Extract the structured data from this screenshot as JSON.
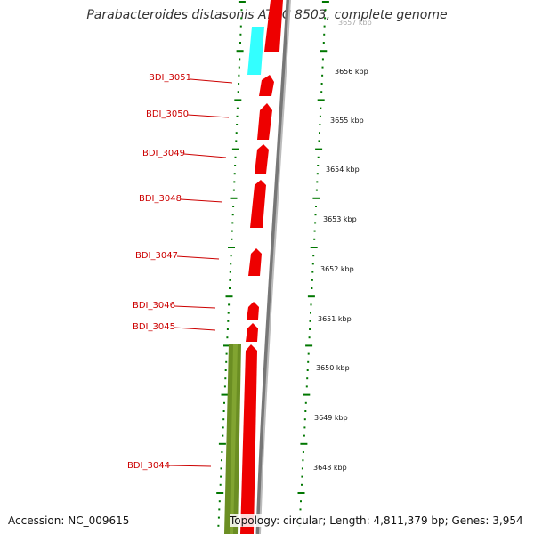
{
  "title": "Parabacteroides distasonis ATCC 8503, complete genome",
  "footer": {
    "accession": "Accession: NC_009615",
    "topology": "Topology: circular; Length: 4,811,379 bp; Genes: 3,954"
  },
  "colors": {
    "gene": "#ee0000",
    "cyan_feature": "#33ffff",
    "olive_feature": "#6b8e23",
    "backbone": "#888888",
    "tick": "#007700",
    "label": "#cc0000"
  },
  "genes": [
    {
      "label": "BDI_3051"
    },
    {
      "label": "BDI_3050"
    },
    {
      "label": "BDI_3049"
    },
    {
      "label": "BDI_3048"
    },
    {
      "label": "BDI_3047"
    },
    {
      "label": "BDI_3046"
    },
    {
      "label": "BDI_3045"
    },
    {
      "label": "BDI_3044"
    }
  ],
  "scale_labels": [
    "3656 kbp",
    "3655 kbp",
    "3654 kbp",
    "3653 kbp",
    "3652 kbp",
    "3651 kbp",
    "3650 kbp",
    "3649 kbp",
    "3648 kbp"
  ]
}
